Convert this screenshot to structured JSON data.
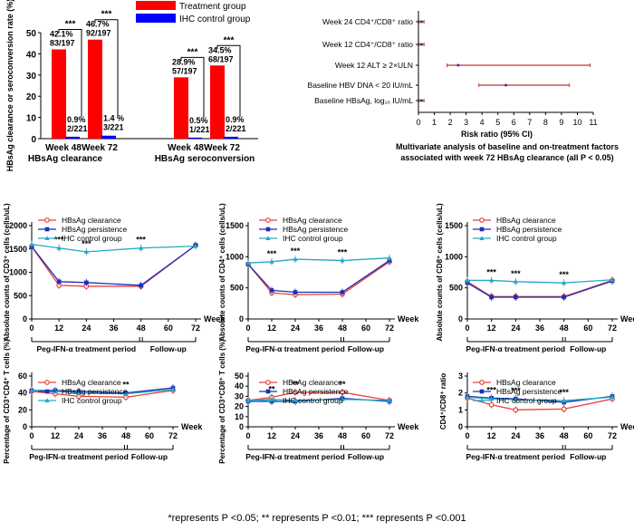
{
  "colors": {
    "red": "#e8403c",
    "blue": "#1f2fb5",
    "teal": "#26a8c4",
    "bar_red": "#ff0000",
    "bar_blue": "#0000ff"
  },
  "footnote": "*represents P <0.05; ** represents P <0.01; *** represents P <0.001",
  "chart_data": [
    {
      "id": "bar",
      "type": "bar",
      "ylabel": "HBsAg clearance or seroconversion rate (%)",
      "ylim": [
        0,
        50
      ],
      "yticks": [
        0,
        10,
        20,
        30,
        40,
        50
      ],
      "legend": [
        "Treatment group",
        "IHC control group"
      ],
      "categories": [
        "Week 48",
        "Week 72",
        "Week 48",
        "Week 72"
      ],
      "groups": [
        "HBsAg clearance",
        "HBsAg seroconversion"
      ],
      "series": [
        {
          "name": "Treatment group",
          "values": [
            42.1,
            46.7,
            28.9,
            34.5
          ],
          "labels": [
            [
              "42.1%",
              "83/197"
            ],
            [
              "46.7%",
              "92/197"
            ],
            [
              "28.9%",
              "57/197"
            ],
            [
              "34.5%",
              "68/197"
            ]
          ]
        },
        {
          "name": "IHC control group",
          "values": [
            0.9,
            1.4,
            0.5,
            0.9
          ],
          "labels": [
            [
              "0.9%",
              "2/221"
            ],
            [
              "1.4 %",
              "3/221"
            ],
            [
              "0.5%",
              "1/221"
            ],
            [
              "0.9%",
              "2/221"
            ]
          ]
        }
      ],
      "significance": "***"
    },
    {
      "id": "forest",
      "type": "forest",
      "xlabel": "Risk ratio (95% CI)",
      "xlim": [
        0,
        11
      ],
      "xticks": [
        0,
        1,
        2,
        3,
        4,
        5,
        6,
        7,
        8,
        9,
        10,
        11
      ],
      "rows": [
        {
          "label": "Week 24 CD4⁺/CD8⁺ ratio",
          "est": 0.2,
          "lo": 0.05,
          "hi": 0.35
        },
        {
          "label": "Week 12 CD4⁺/CD8⁺ ratio",
          "est": 0.2,
          "lo": 0.05,
          "hi": 0.35
        },
        {
          "label": "Week 12 ALT ≥ 2×ULN",
          "est": 2.5,
          "lo": 1.8,
          "hi": 10.8
        },
        {
          "label": "Baseline HBV DNA < 20 IU/mL",
          "est": 5.5,
          "lo": 3.8,
          "hi": 9.5
        },
        {
          "label": "Baseline HBsAg, log₁₀ IU/mL",
          "est": 0.2,
          "lo": 0.05,
          "hi": 0.35
        }
      ],
      "caption": [
        "Multivariate analysis of baseline and on-treatment factors",
        "associated with week 72 HBsAg clearance (all P < 0.05)"
      ]
    },
    {
      "id": "cd3",
      "type": "line",
      "ylabel": "Absolute counts of CD3⁺ cells (cells/uL)",
      "ylim": [
        0,
        2000
      ],
      "yticks": [
        0,
        500,
        1000,
        1500,
        2000
      ],
      "x": [
        0,
        12,
        24,
        48,
        72
      ],
      "xticks": [
        0,
        12,
        24,
        36,
        48,
        60,
        72
      ],
      "xunit": "Week",
      "series": [
        {
          "name": "HBsAg clearance",
          "values": [
            1550,
            720,
            700,
            700,
            1580
          ]
        },
        {
          "name": "HBsAg persistence",
          "values": [
            1550,
            800,
            780,
            720,
            1580
          ]
        },
        {
          "name": "IHC control group",
          "values": [
            1600,
            1520,
            1440,
            1520,
            1560
          ]
        }
      ],
      "sig": [
        "",
        "***",
        "***",
        "***",
        ""
      ],
      "periods": [
        "Peg-IFN-α treatment period",
        "Follow-up"
      ]
    },
    {
      "id": "cd4",
      "type": "line",
      "ylabel": "Absolute counts of CD4⁺ cells (cells/uL)",
      "ylim": [
        0,
        1500
      ],
      "yticks": [
        0,
        500,
        1000,
        1500
      ],
      "x": [
        0,
        12,
        24,
        48,
        72
      ],
      "xticks": [
        0,
        12,
        24,
        36,
        48,
        60,
        72
      ],
      "xunit": "Week",
      "series": [
        {
          "name": "HBsAg clearance",
          "values": [
            880,
            420,
            390,
            400,
            920
          ]
        },
        {
          "name": "HBsAg persistence",
          "values": [
            880,
            460,
            430,
            430,
            940
          ]
        },
        {
          "name": "IHC control group",
          "values": [
            900,
            920,
            960,
            940,
            980
          ]
        }
      ],
      "sig": [
        "",
        "***",
        "***",
        "***",
        ""
      ],
      "periods": [
        "Peg-IFN-α treatment period",
        "Follow-up"
      ]
    },
    {
      "id": "cd8",
      "type": "line",
      "ylabel": "Absolute counts of CD8⁺ cells (cells/uL)",
      "ylim": [
        0,
        1500
      ],
      "yticks": [
        0,
        500,
        1000,
        1500
      ],
      "x": [
        0,
        12,
        24,
        48,
        72
      ],
      "xticks": [
        0,
        12,
        24,
        36,
        48,
        60,
        72
      ],
      "xunit": "Week",
      "series": [
        {
          "name": "HBsAg clearance",
          "values": [
            600,
            360,
            360,
            360,
            620
          ]
        },
        {
          "name": "HBsAg persistence",
          "values": [
            580,
            350,
            350,
            350,
            610
          ]
        },
        {
          "name": "IHC control group",
          "values": [
            620,
            620,
            600,
            580,
            630
          ]
        }
      ],
      "sig": [
        "",
        "***",
        "***",
        "***",
        ""
      ],
      "periods": [
        "Peg-IFN-α treatment period",
        "Follow-up"
      ]
    },
    {
      "id": "pct4",
      "type": "line",
      "ylabel": "Percentage of CD3⁺CD4⁺ T cells (%)",
      "ylim": [
        0,
        60
      ],
      "yticks": [
        0,
        20,
        40,
        60
      ],
      "x": [
        0,
        12,
        24,
        48,
        72
      ],
      "xticks": [
        0,
        12,
        24,
        36,
        48,
        60,
        72
      ],
      "xunit": "Week",
      "series": [
        {
          "name": "HBsAg clearance",
          "values": [
            42,
            39,
            36,
            35,
            43
          ]
        },
        {
          "name": "HBsAg persistence",
          "values": [
            43,
            43,
            42,
            40,
            46
          ]
        },
        {
          "name": "IHC control group",
          "values": [
            43,
            42,
            40,
            39,
            44
          ]
        }
      ],
      "sig": [
        "",
        "",
        "",
        "**",
        ""
      ],
      "periods": [
        "Peg-IFN-α treatment period",
        "Follow-up"
      ]
    },
    {
      "id": "pct8",
      "type": "line",
      "ylabel": "Percentage of CD3⁺CD8⁺ T cells (%)",
      "ylim": [
        0,
        50
      ],
      "yticks": [
        0,
        10,
        20,
        30,
        40,
        50
      ],
      "x": [
        0,
        12,
        24,
        48,
        72
      ],
      "xticks": [
        0,
        12,
        24,
        36,
        48,
        60,
        72
      ],
      "xunit": "Week",
      "series": [
        {
          "name": "HBsAg clearance",
          "values": [
            26,
            29,
            34,
            34,
            26
          ]
        },
        {
          "name": "HBsAg persistence",
          "values": [
            25,
            25,
            25,
            28,
            25
          ]
        },
        {
          "name": "IHC control group",
          "values": [
            26,
            27,
            26,
            27,
            26
          ]
        }
      ],
      "sig": [
        "",
        "**",
        "**",
        "**",
        ""
      ],
      "periods": [
        "Peg-IFN-α treatment period",
        "Follow-up"
      ]
    },
    {
      "id": "ratio",
      "type": "line",
      "ylabel": "CD4⁺/CD8⁺ ratio",
      "ylim": [
        0,
        3
      ],
      "yticks": [
        0,
        1,
        2,
        3
      ],
      "x": [
        0,
        12,
        24,
        48,
        72
      ],
      "xticks": [
        0,
        12,
        24,
        36,
        48,
        60,
        72
      ],
      "xunit": "Week",
      "series": [
        {
          "name": "HBsAg clearance",
          "values": [
            1.7,
            1.3,
            1.0,
            1.05,
            1.65
          ]
        },
        {
          "name": "HBsAg persistence",
          "values": [
            1.8,
            1.7,
            1.65,
            1.45,
            1.8
          ]
        },
        {
          "name": "IHC control group",
          "values": [
            1.75,
            1.65,
            1.6,
            1.55,
            1.75
          ]
        }
      ],
      "sig": [
        "",
        "***",
        "***",
        "***",
        ""
      ],
      "periods": [
        "Peg-IFN-α treatment period",
        "Follow-up"
      ]
    }
  ]
}
